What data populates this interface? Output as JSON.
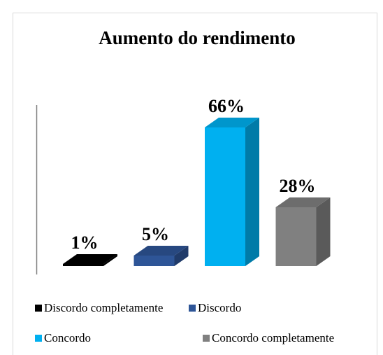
{
  "chart_data": {
    "type": "bar3d",
    "title": "Aumento do rendimento",
    "categories": [
      "Discordo completamente",
      "Discordo",
      "Concordo",
      "Concordo completamente"
    ],
    "values": [
      1,
      5,
      66,
      28
    ],
    "value_labels": [
      "1%",
      "5%",
      "66%",
      "28%"
    ],
    "colors": [
      "#000000",
      "#2e5597",
      "#00b0f0",
      "#808080"
    ],
    "legend": "bottom"
  }
}
